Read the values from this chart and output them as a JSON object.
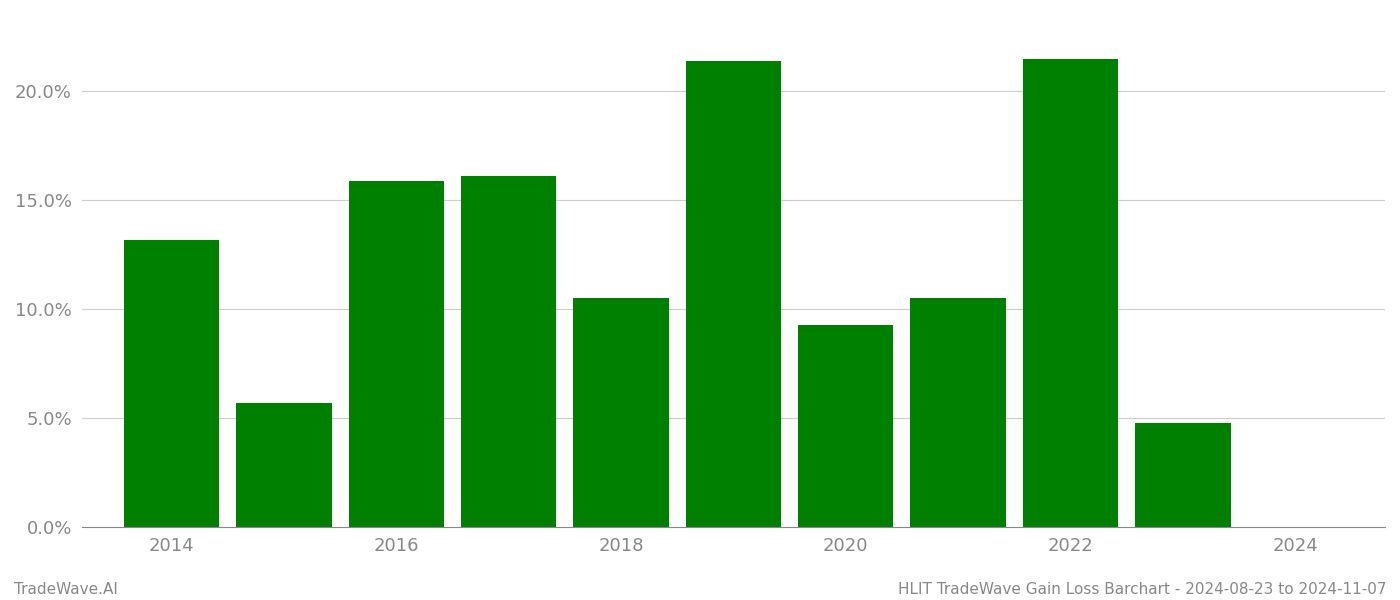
{
  "years": [
    2014,
    2015,
    2016,
    2017,
    2018,
    2019,
    2020,
    2021,
    2022,
    2023
  ],
  "values": [
    0.132,
    0.057,
    0.159,
    0.161,
    0.105,
    0.214,
    0.093,
    0.105,
    0.215,
    0.048
  ],
  "bar_color": "#008000",
  "background_color": "#ffffff",
  "ylim": [
    0,
    0.235
  ],
  "yticks": [
    0.0,
    0.05,
    0.1,
    0.15,
    0.2
  ],
  "grid_color": "#cccccc",
  "axis_label_color": "#888888",
  "bottom_left_text": "TradeWave.AI",
  "bottom_right_text": "HLIT TradeWave Gain Loss Barchart - 2024-08-23 to 2024-11-07",
  "bottom_text_color": "#888888",
  "bar_width": 0.85,
  "xlim": [
    2013.2,
    2024.8
  ],
  "xticks": [
    2014,
    2016,
    2018,
    2020,
    2022,
    2024
  ],
  "tick_fontsize": 13,
  "footer_fontsize": 11
}
